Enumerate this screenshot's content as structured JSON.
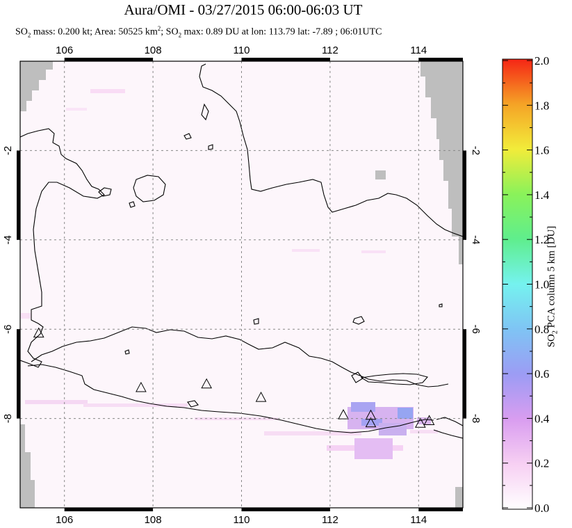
{
  "header": {
    "title": "Aura/OMI - 03/27/2015 06:00-06:03 UT",
    "subtitle_prefix": "SO",
    "subtitle_sub": "2",
    "subtitle_mass": " mass: 0.200 kt; Area: 50525 km",
    "subtitle_sup": "2",
    "subtitle_rest": "; SO",
    "subtitle_sub2": "2",
    "subtitle_end": " max: 0.89 DU at lon: 113.79 lat: -7.89 ; 06:01UTC"
  },
  "map": {
    "lon_range": [
      105.0,
      115.0
    ],
    "lat_range": [
      -10.0,
      0.0
    ],
    "lon_ticks": [
      "106",
      "108",
      "110",
      "112",
      "114"
    ],
    "lat_ticks": [
      "-2",
      "-4",
      "-6",
      "-8"
    ],
    "lat_tick_values": [
      -2,
      -4,
      -6,
      -8
    ],
    "lon_tick_values": [
      106,
      108,
      110,
      112,
      114
    ],
    "volcanoes": [
      {
        "lon": 105.42,
        "lat": -6.1
      },
      {
        "lon": 107.73,
        "lat": -7.32
      },
      {
        "lon": 109.21,
        "lat": -7.24
      },
      {
        "lon": 110.44,
        "lat": -7.54
      },
      {
        "lon": 112.3,
        "lat": -7.93
      },
      {
        "lon": 112.92,
        "lat": -7.94
      },
      {
        "lon": 112.92,
        "lat": -8.11
      },
      {
        "lon": 114.04,
        "lat": -8.12
      },
      {
        "lon": 114.24,
        "lat": -8.06
      }
    ],
    "colors": {
      "land_outline": "#000000",
      "missing": "#bebebe",
      "grid": "#888888"
    }
  },
  "colorbar": {
    "label": "SO",
    "label_sub": "2",
    "label_rest": " PCA column 5 km [DU]",
    "ticks": [
      "0.0",
      "0.2",
      "0.4",
      "0.6",
      "0.8",
      "1.0",
      "1.2",
      "1.4",
      "1.6",
      "1.8",
      "2.0"
    ],
    "range": [
      0.0,
      2.0
    ],
    "colors": [
      "#ffffff",
      "#f7d0f3",
      "#d99df0",
      "#9c9cf4",
      "#7fc4f4",
      "#75f2ef",
      "#5fee8d",
      "#8af25a",
      "#f2ec3a",
      "#f5a326",
      "#f52515"
    ]
  }
}
